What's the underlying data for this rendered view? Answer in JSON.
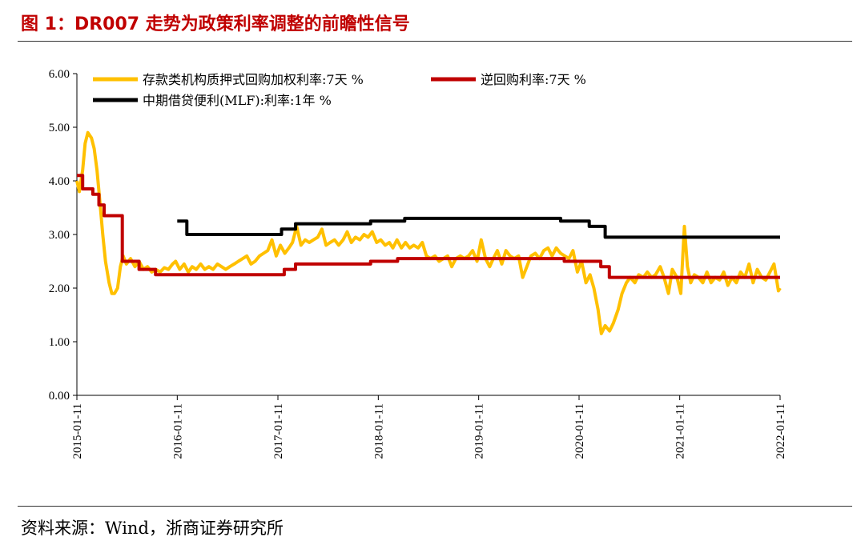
{
  "figure": {
    "title": "图 1：DR007 走势为政策利率调整的前瞻性信号",
    "source": "资料来源：Wind，浙商证券研究所"
  },
  "colors": {
    "title": "#c00000",
    "dr007": "#ffc000",
    "reverse_repo": "#c00000",
    "mlf": "#000000"
  },
  "chart_data": {
    "type": "line",
    "title": "",
    "xlabel": "",
    "ylabel": "",
    "ylim": [
      0,
      6
    ],
    "yticks": [
      "0.00",
      "1.00",
      "2.00",
      "3.00",
      "4.00",
      "5.00",
      "6.00"
    ],
    "xlim": [
      "2015-01-11",
      "2022-01-11"
    ],
    "xticks": [
      "2015-01-11",
      "2016-01-11",
      "2017-01-11",
      "2018-01-11",
      "2019-01-11",
      "2020-01-11",
      "2021-01-11",
      "2022-01-11"
    ],
    "grid": false,
    "legend": "top",
    "series": [
      {
        "name": "存款类机构质押式回购加权利率:7天 %",
        "style": "line",
        "points": [
          [
            "2015-01-11",
            4.0
          ],
          [
            "2015-01-20",
            3.8
          ],
          [
            "2015-02-01",
            4.2
          ],
          [
            "2015-02-10",
            4.7
          ],
          [
            "2015-02-20",
            4.9
          ],
          [
            "2015-03-05",
            4.8
          ],
          [
            "2015-03-15",
            4.6
          ],
          [
            "2015-03-25",
            4.2
          ],
          [
            "2015-04-05",
            3.6
          ],
          [
            "2015-04-15",
            3.0
          ],
          [
            "2015-04-25",
            2.5
          ],
          [
            "2015-05-08",
            2.1
          ],
          [
            "2015-05-18",
            1.9
          ],
          [
            "2015-05-28",
            1.9
          ],
          [
            "2015-06-08",
            2.0
          ],
          [
            "2015-06-18",
            2.4
          ],
          [
            "2015-06-28",
            2.6
          ],
          [
            "2015-07-10",
            2.45
          ],
          [
            "2015-07-25",
            2.55
          ],
          [
            "2015-08-10",
            2.4
          ],
          [
            "2015-08-25",
            2.5
          ],
          [
            "2015-09-10",
            2.35
          ],
          [
            "2015-09-25",
            2.4
          ],
          [
            "2015-10-10",
            2.3
          ],
          [
            "2015-10-25",
            2.35
          ],
          [
            "2015-11-10",
            2.3
          ],
          [
            "2015-11-25",
            2.38
          ],
          [
            "2015-12-10",
            2.35
          ],
          [
            "2015-12-25",
            2.45
          ],
          [
            "2016-01-05",
            2.5
          ],
          [
            "2016-01-20",
            2.35
          ],
          [
            "2016-02-05",
            2.45
          ],
          [
            "2016-02-20",
            2.3
          ],
          [
            "2016-03-05",
            2.4
          ],
          [
            "2016-03-20",
            2.35
          ],
          [
            "2016-04-05",
            2.45
          ],
          [
            "2016-04-20",
            2.35
          ],
          [
            "2016-05-05",
            2.4
          ],
          [
            "2016-05-20",
            2.35
          ],
          [
            "2016-06-05",
            2.45
          ],
          [
            "2016-06-20",
            2.4
          ],
          [
            "2016-07-05",
            2.35
          ],
          [
            "2016-07-20",
            2.4
          ],
          [
            "2016-08-05",
            2.45
          ],
          [
            "2016-08-20",
            2.5
          ],
          [
            "2016-09-05",
            2.55
          ],
          [
            "2016-09-20",
            2.6
          ],
          [
            "2016-10-05",
            2.45
          ],
          [
            "2016-10-20",
            2.5
          ],
          [
            "2016-11-05",
            2.6
          ],
          [
            "2016-11-20",
            2.65
          ],
          [
            "2016-12-05",
            2.7
          ],
          [
            "2016-12-20",
            2.9
          ],
          [
            "2017-01-05",
            2.6
          ],
          [
            "2017-01-20",
            2.8
          ],
          [
            "2017-02-05",
            2.65
          ],
          [
            "2017-02-20",
            2.75
          ],
          [
            "2017-03-05",
            2.85
          ],
          [
            "2017-03-20",
            3.15
          ],
          [
            "2017-04-05",
            2.8
          ],
          [
            "2017-04-20",
            2.9
          ],
          [
            "2017-05-05",
            2.85
          ],
          [
            "2017-05-20",
            2.9
          ],
          [
            "2017-06-05",
            2.95
          ],
          [
            "2017-06-20",
            3.1
          ],
          [
            "2017-07-05",
            2.8
          ],
          [
            "2017-07-20",
            2.85
          ],
          [
            "2017-08-05",
            2.9
          ],
          [
            "2017-08-20",
            2.8
          ],
          [
            "2017-09-05",
            2.9
          ],
          [
            "2017-09-20",
            3.05
          ],
          [
            "2017-10-05",
            2.85
          ],
          [
            "2017-10-20",
            2.95
          ],
          [
            "2017-11-05",
            2.9
          ],
          [
            "2017-11-20",
            3.0
          ],
          [
            "2017-12-05",
            2.95
          ],
          [
            "2017-12-20",
            3.05
          ],
          [
            "2018-01-05",
            2.85
          ],
          [
            "2018-01-20",
            2.9
          ],
          [
            "2018-02-05",
            2.8
          ],
          [
            "2018-02-20",
            2.85
          ],
          [
            "2018-03-05",
            2.75
          ],
          [
            "2018-03-20",
            2.9
          ],
          [
            "2018-04-05",
            2.75
          ],
          [
            "2018-04-20",
            2.85
          ],
          [
            "2018-05-05",
            2.75
          ],
          [
            "2018-05-20",
            2.8
          ],
          [
            "2018-06-05",
            2.75
          ],
          [
            "2018-06-20",
            2.85
          ],
          [
            "2018-07-05",
            2.6
          ],
          [
            "2018-07-20",
            2.55
          ],
          [
            "2018-08-05",
            2.6
          ],
          [
            "2018-08-20",
            2.5
          ],
          [
            "2018-09-05",
            2.55
          ],
          [
            "2018-09-20",
            2.6
          ],
          [
            "2018-10-05",
            2.4
          ],
          [
            "2018-10-20",
            2.55
          ],
          [
            "2018-11-05",
            2.6
          ],
          [
            "2018-11-20",
            2.55
          ],
          [
            "2018-12-05",
            2.6
          ],
          [
            "2018-12-20",
            2.7
          ],
          [
            "2019-01-05",
            2.5
          ],
          [
            "2019-01-20",
            2.9
          ],
          [
            "2019-02-05",
            2.55
          ],
          [
            "2019-02-20",
            2.4
          ],
          [
            "2019-03-05",
            2.55
          ],
          [
            "2019-03-20",
            2.7
          ],
          [
            "2019-04-05",
            2.45
          ],
          [
            "2019-04-20",
            2.7
          ],
          [
            "2019-05-05",
            2.6
          ],
          [
            "2019-05-20",
            2.55
          ],
          [
            "2019-06-05",
            2.6
          ],
          [
            "2019-06-20",
            2.2
          ],
          [
            "2019-07-05",
            2.4
          ],
          [
            "2019-07-20",
            2.6
          ],
          [
            "2019-08-05",
            2.65
          ],
          [
            "2019-08-20",
            2.55
          ],
          [
            "2019-09-05",
            2.7
          ],
          [
            "2019-09-20",
            2.75
          ],
          [
            "2019-10-05",
            2.6
          ],
          [
            "2019-10-20",
            2.75
          ],
          [
            "2019-11-05",
            2.65
          ],
          [
            "2019-11-20",
            2.6
          ],
          [
            "2019-12-05",
            2.55
          ],
          [
            "2019-12-20",
            2.7
          ],
          [
            "2020-01-05",
            2.3
          ],
          [
            "2020-01-20",
            2.5
          ],
          [
            "2020-02-05",
            2.1
          ],
          [
            "2020-02-20",
            2.25
          ],
          [
            "2020-03-05",
            2.0
          ],
          [
            "2020-03-20",
            1.6
          ],
          [
            "2020-04-01",
            1.15
          ],
          [
            "2020-04-15",
            1.3
          ],
          [
            "2020-05-01",
            1.2
          ],
          [
            "2020-05-15",
            1.35
          ],
          [
            "2020-06-01",
            1.6
          ],
          [
            "2020-06-15",
            1.9
          ],
          [
            "2020-07-01",
            2.1
          ],
          [
            "2020-07-15",
            2.2
          ],
          [
            "2020-08-01",
            2.1
          ],
          [
            "2020-08-15",
            2.25
          ],
          [
            "2020-09-01",
            2.2
          ],
          [
            "2020-09-15",
            2.3
          ],
          [
            "2020-10-01",
            2.2
          ],
          [
            "2020-10-15",
            2.25
          ],
          [
            "2020-11-01",
            2.4
          ],
          [
            "2020-11-15",
            2.2
          ],
          [
            "2020-12-01",
            1.9
          ],
          [
            "2020-12-15",
            2.35
          ],
          [
            "2021-01-01",
            2.2
          ],
          [
            "2021-01-15",
            1.9
          ],
          [
            "2021-01-28",
            3.15
          ],
          [
            "2021-02-08",
            2.4
          ],
          [
            "2021-02-20",
            2.1
          ],
          [
            "2021-03-05",
            2.25
          ],
          [
            "2021-03-20",
            2.2
          ],
          [
            "2021-04-05",
            2.1
          ],
          [
            "2021-04-20",
            2.3
          ],
          [
            "2021-05-05",
            2.1
          ],
          [
            "2021-05-20",
            2.2
          ],
          [
            "2021-06-05",
            2.15
          ],
          [
            "2021-06-20",
            2.3
          ],
          [
            "2021-07-05",
            2.05
          ],
          [
            "2021-07-20",
            2.2
          ],
          [
            "2021-08-05",
            2.1
          ],
          [
            "2021-08-20",
            2.3
          ],
          [
            "2021-09-05",
            2.2
          ],
          [
            "2021-09-20",
            2.45
          ],
          [
            "2021-10-05",
            2.1
          ],
          [
            "2021-10-20",
            2.35
          ],
          [
            "2021-11-05",
            2.2
          ],
          [
            "2021-11-20",
            2.15
          ],
          [
            "2021-12-05",
            2.3
          ],
          [
            "2021-12-20",
            2.45
          ],
          [
            "2022-01-05",
            1.95
          ],
          [
            "2022-01-11",
            2.0
          ]
        ]
      },
      {
        "name": "逆回购利率:7天 %",
        "style": "step",
        "points": [
          [
            "2015-01-11",
            4.1
          ],
          [
            "2015-02-01",
            3.85
          ],
          [
            "2015-03-10",
            3.75
          ],
          [
            "2015-04-01",
            3.55
          ],
          [
            "2015-04-20",
            3.35
          ],
          [
            "2015-06-25",
            2.5
          ],
          [
            "2015-08-25",
            2.35
          ],
          [
            "2015-10-24",
            2.25
          ],
          [
            "2017-02-03",
            2.35
          ],
          [
            "2017-03-16",
            2.45
          ],
          [
            "2017-12-14",
            2.5
          ],
          [
            "2018-03-22",
            2.55
          ],
          [
            "2019-11-18",
            2.5
          ],
          [
            "2020-03-30",
            2.4
          ],
          [
            "2020-04-30",
            2.2
          ],
          [
            "2022-01-11",
            2.2
          ]
        ]
      },
      {
        "name": "中期借贷便利(MLF):利率:1年 %",
        "style": "step",
        "points": [
          [
            "2016-01-11",
            3.25
          ],
          [
            "2016-02-15",
            3.0
          ],
          [
            "2017-01-24",
            3.1
          ],
          [
            "2017-03-16",
            3.2
          ],
          [
            "2017-12-14",
            3.25
          ],
          [
            "2018-04-17",
            3.3
          ],
          [
            "2019-11-05",
            3.25
          ],
          [
            "2020-02-17",
            3.15
          ],
          [
            "2020-04-15",
            2.95
          ],
          [
            "2022-01-11",
            2.95
          ]
        ]
      }
    ]
  }
}
